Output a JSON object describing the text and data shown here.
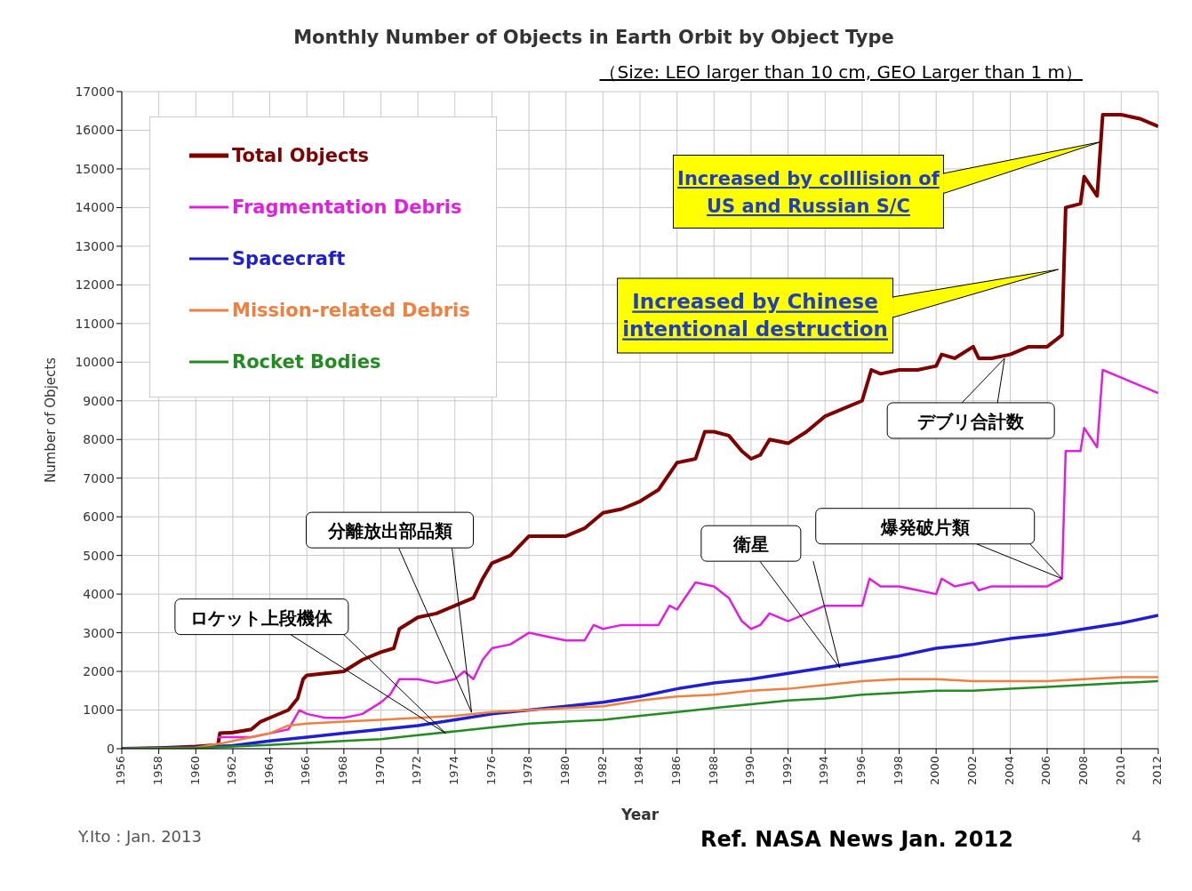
{
  "chart_data": {
    "type": "line",
    "title": "Monthly Number of Objects in Earth Orbit by Object Type",
    "subtitle": "（Size:   LEO larger than 10 cm, GEO Larger than 1 m）",
    "xlabel": "Year",
    "ylabel": "Number of Objects",
    "xlim": [
      1956,
      2012
    ],
    "xticks": [
      1956,
      1958,
      1960,
      1962,
      1964,
      1966,
      1968,
      1970,
      1972,
      1974,
      1976,
      1978,
      1980,
      1982,
      1984,
      1986,
      1988,
      1990,
      1992,
      1994,
      1996,
      1998,
      2000,
      2002,
      2004,
      2006,
      2008,
      2010,
      2012
    ],
    "ylim": [
      0,
      17000
    ],
    "yticks": [
      0,
      1000,
      2000,
      3000,
      4000,
      5000,
      6000,
      7000,
      8000,
      9000,
      10000,
      11000,
      12000,
      13000,
      14000,
      15000,
      16000,
      17000
    ],
    "grid": true,
    "legend": "top left",
    "marker": "none",
    "line_style": "solid",
    "series": [
      {
        "name": "Total Objects",
        "color": "#800000",
        "x": [
          1956,
          1958,
          1960,
          1961.2,
          1961.3,
          1962,
          1963,
          1963.5,
          1964,
          1965,
          1965.5,
          1965.8,
          1966,
          1967,
          1968,
          1969,
          1970,
          1970.7,
          1971,
          1972,
          1973,
          1974,
          1975,
          1975.5,
          1976,
          1977,
          1978,
          1979,
          1980,
          1981,
          1982,
          1983,
          1984,
          1985,
          1986,
          1987,
          1987.5,
          1988,
          1988.8,
          1989.5,
          1990,
          1990.5,
          1991,
          1992,
          1993,
          1994,
          1995,
          1996,
          1996.5,
          1997,
          1998,
          1999,
          2000,
          2000.3,
          2001,
          2002,
          2002.3,
          2003,
          2004,
          2005,
          2006,
          2006.8,
          2007,
          2007.8,
          2008,
          2008.7,
          2009,
          2010,
          2011,
          2012
        ],
        "values": [
          0,
          20,
          60,
          100,
          400,
          420,
          500,
          700,
          800,
          1000,
          1300,
          1800,
          1900,
          1950,
          2000,
          2300,
          2500,
          2600,
          3100,
          3400,
          3500,
          3700,
          3900,
          4400,
          4800,
          5000,
          5500,
          5500,
          5500,
          5700,
          6100,
          6200,
          6400,
          6700,
          7400,
          7500,
          8200,
          8200,
          8100,
          7700,
          7500,
          7600,
          8000,
          7900,
          8200,
          8600,
          8800,
          9000,
          9800,
          9700,
          9800,
          9800,
          9900,
          10200,
          10100,
          10400,
          10100,
          10100,
          10200,
          10400,
          10400,
          10700,
          14000,
          14100,
          14800,
          14300,
          16400,
          16400,
          16300,
          16100
        ]
      },
      {
        "name": "Fragmentation Debris",
        "color": "#e020e0",
        "x": [
          1961.2,
          1963,
          1964,
          1965,
          1965.6,
          1966,
          1967,
          1968,
          1969,
          1970,
          1970.5,
          1971,
          1972,
          1973,
          1974,
          1974.5,
          1975,
          1975.5,
          1976,
          1977,
          1978,
          1979,
          1980,
          1981,
          1981.5,
          1982,
          1983,
          1984,
          1985,
          1985.6,
          1986,
          1987,
          1988,
          1988.8,
          1989.5,
          1990,
          1990.5,
          1991,
          1992,
          1993,
          1994,
          1995,
          1996,
          1996.4,
          1997,
          1998,
          1999,
          2000,
          2000.3,
          2001,
          2002,
          2002.3,
          2003,
          2004,
          2005,
          2006,
          2006.8,
          2007,
          2007.8,
          2008,
          2008.7,
          2009,
          2010,
          2011,
          2012
        ],
        "values": [
          300,
          300,
          400,
          500,
          1000,
          900,
          800,
          800,
          900,
          1200,
          1400,
          1800,
          1800,
          1700,
          1800,
          2000,
          1800,
          2300,
          2600,
          2700,
          3000,
          2900,
          2800,
          2800,
          3200,
          3100,
          3200,
          3200,
          3200,
          3700,
          3600,
          4300,
          4200,
          3900,
          3300,
          3100,
          3200,
          3500,
          3300,
          3500,
          3700,
          3700,
          3700,
          4400,
          4200,
          4200,
          4100,
          4000,
          4400,
          4200,
          4300,
          4100,
          4200,
          4200,
          4200,
          4200,
          4400,
          7700,
          7700,
          8300,
          7800,
          9800,
          9600,
          9400,
          9200
        ]
      },
      {
        "name": "Spacecraft",
        "color": "#1f1fd0",
        "x": [
          1956,
          1960,
          1962,
          1964,
          1966,
          1968,
          1970,
          1972,
          1974,
          1976,
          1978,
          1980,
          1982,
          1984,
          1986,
          1988,
          1990,
          1992,
          1994,
          1996,
          1998,
          2000,
          2002,
          2004,
          2006,
          2008,
          2010,
          2012
        ],
        "values": [
          0,
          30,
          80,
          200,
          300,
          400,
          500,
          600,
          750,
          900,
          1000,
          1100,
          1200,
          1350,
          1550,
          1700,
          1800,
          1950,
          2100,
          2250,
          2400,
          2600,
          2700,
          2850,
          2950,
          3100,
          3250,
          3450
        ]
      },
      {
        "name": "Mission-related Debris",
        "color": "#f08040",
        "x": [
          1956,
          1960,
          1961.5,
          1963,
          1964,
          1965,
          1966,
          1968,
          1970,
          1972,
          1974,
          1976,
          1978,
          1980,
          1982,
          1984,
          1986,
          1988,
          1990,
          1992,
          1994,
          1996,
          1998,
          2000,
          2002,
          2004,
          2006,
          2008,
          2010,
          2012
        ],
        "values": [
          0,
          30,
          150,
          300,
          400,
          600,
          650,
          700,
          750,
          800,
          850,
          950,
          1000,
          1050,
          1100,
          1250,
          1350,
          1400,
          1500,
          1550,
          1650,
          1750,
          1800,
          1800,
          1750,
          1750,
          1750,
          1800,
          1850,
          1850
        ]
      },
      {
        "name": "Rocket Bodies",
        "color": "#228b22",
        "x": [
          1956,
          1960,
          1962,
          1964,
          1966,
          1968,
          1970,
          1972,
          1974,
          1976,
          1978,
          1980,
          1982,
          1984,
          1986,
          1988,
          1990,
          1992,
          1994,
          1996,
          1998,
          2000,
          2002,
          2004,
          2006,
          2008,
          2010,
          2012
        ],
        "values": [
          0,
          20,
          60,
          100,
          150,
          200,
          250,
          350,
          450,
          550,
          650,
          700,
          750,
          850,
          950,
          1050,
          1150,
          1250,
          1300,
          1400,
          1450,
          1500,
          1500,
          1550,
          1600,
          1650,
          1700,
          1750
        ]
      }
    ],
    "annotations": [
      {
        "text": "ロケット上段機体",
        "x": 1973.5,
        "y": 400
      },
      {
        "text": "分離放出部品類",
        "x": 1974.9,
        "y": 940
      },
      {
        "text": "衛星",
        "x": 1994.8,
        "y": 2090
      },
      {
        "text": "爆発破片類",
        "x": 2006.8,
        "y": 4400
      },
      {
        "text": "デブリ合計数",
        "x": 2003.7,
        "y": 10100
      },
      {
        "text": "Increased by Chinese intentional destruction",
        "x": 2006.6,
        "y": 12400
      },
      {
        "text": "Increased by colllision of US and Russian S/C",
        "x": 2008.9,
        "y": 15700
      },
      "Y.Ito : Jan. 2013",
      "Ref.  NASA News   Jan. 2012",
      "4"
    ]
  }
}
